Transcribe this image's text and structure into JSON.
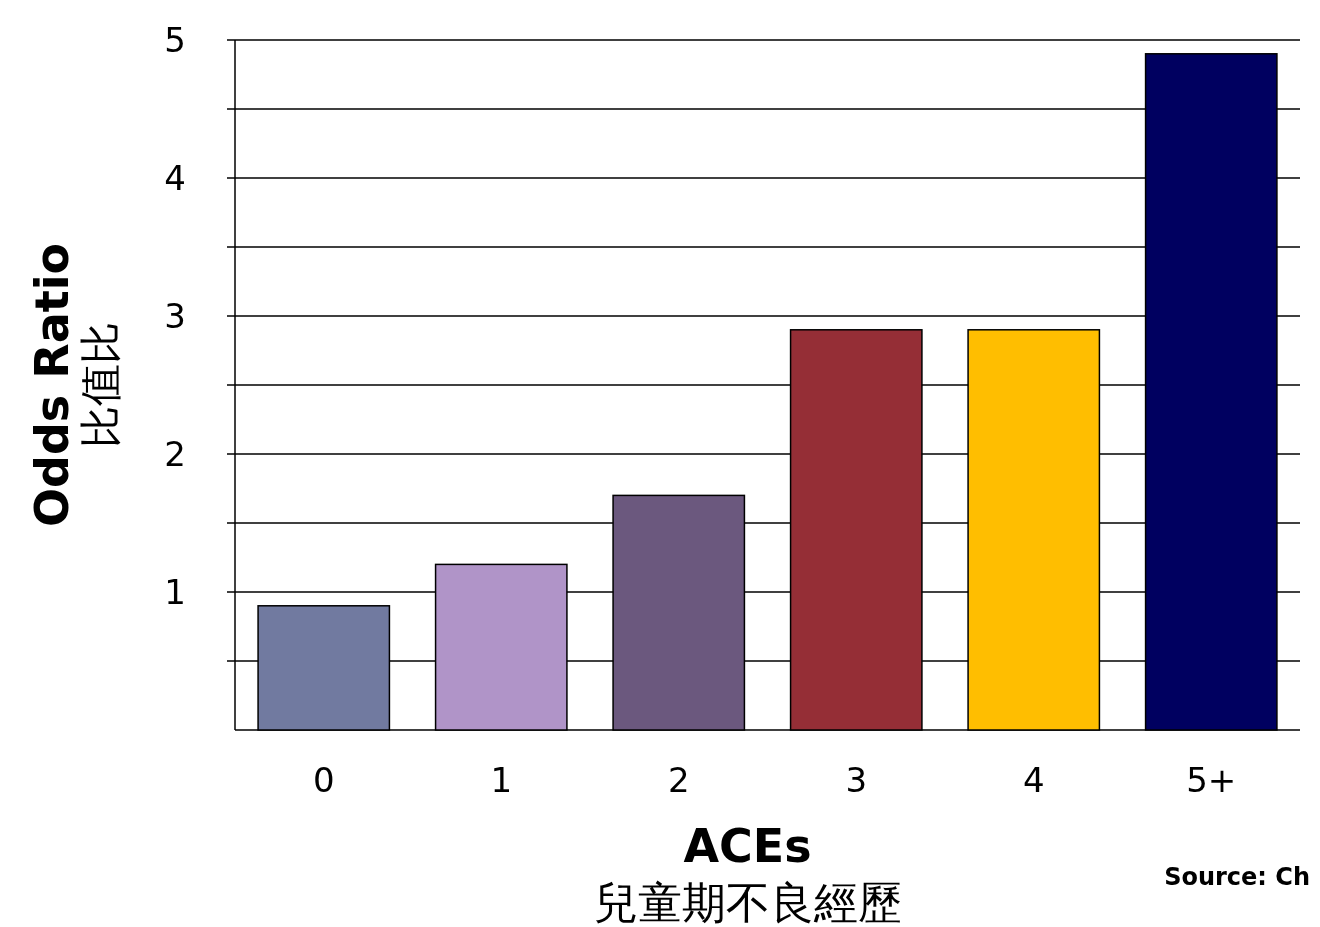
{
  "chart_data": {
    "type": "bar",
    "categories": [
      "0",
      "1",
      "2",
      "3",
      "4",
      "5+"
    ],
    "values": [
      0.9,
      1.2,
      1.7,
      2.9,
      2.9,
      4.9
    ],
    "colors": [
      "#717aa0",
      "#b094c8",
      "#6b587e",
      "#952e36",
      "#ffbe00",
      "#000060"
    ],
    "ylim": [
      0,
      5
    ],
    "yticks": [
      {
        "value": 0.5,
        "label": null
      },
      1,
      {
        "value": 1.5,
        "label": null
      },
      2,
      {
        "value": 2.5,
        "label": null
      },
      3,
      {
        "value": 3.5,
        "label": null
      },
      4,
      {
        "value": 4.5,
        "label": null
      },
      5
    ],
    "grid": "y",
    "xlabel": "ACEs\n兒童期不良經歷",
    "ylabel": "Odds Ratio\n比值比",
    "annotations": [
      "Source: Ch"
    ]
  }
}
